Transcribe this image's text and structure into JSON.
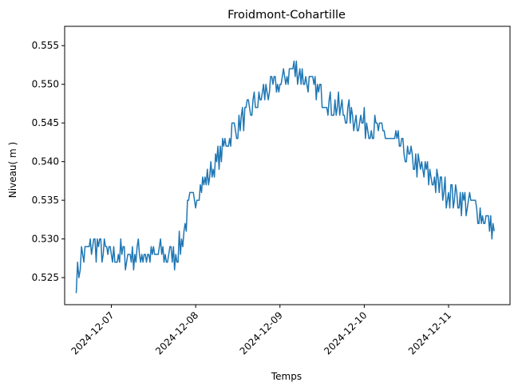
{
  "chart_data": {
    "type": "line",
    "title": "Froidmont-Cohartille",
    "xlabel": "Temps",
    "ylabel": "Niveau( m )",
    "ylim": [
      0.5215,
      0.5575
    ],
    "xlim": [
      "2024-12-06T10:42",
      "2024-12-11T17:30"
    ],
    "grid": false,
    "x_ticks": [
      "2024-12-07",
      "2024-12-08",
      "2024-12-09",
      "2024-12-10",
      "2024-12-11"
    ],
    "y_ticks": [
      "0.525",
      "0.530",
      "0.535",
      "0.540",
      "0.545",
      "0.550",
      "0.555"
    ],
    "y_tick_values": [
      0.525,
      0.53,
      0.535,
      0.54,
      0.545,
      0.55,
      0.555
    ],
    "series": [
      {
        "color": "#1f77b4",
        "x": [
          "2024-12-06T14:00",
          "2024-12-06T14:45",
          "2024-12-06T15:30",
          "2024-12-06T16:30",
          "2024-12-06T18:00",
          "2024-12-06T20:00",
          "2024-12-06T22:00",
          "2024-12-07T00:00",
          "2024-12-07T02:00",
          "2024-12-07T04:00",
          "2024-12-07T06:00",
          "2024-12-07T08:00",
          "2024-12-07T10:00",
          "2024-12-07T12:00",
          "2024-12-07T14:00",
          "2024-12-07T16:00",
          "2024-12-07T18:00",
          "2024-12-07T19:00",
          "2024-12-07T20:00",
          "2024-12-07T21:00",
          "2024-12-07T22:00",
          "2024-12-08T00:00",
          "2024-12-08T02:00",
          "2024-12-08T04:00",
          "2024-12-08T06:00",
          "2024-12-08T08:00",
          "2024-12-08T10:00",
          "2024-12-08T12:00",
          "2024-12-08T14:00",
          "2024-12-08T16:00",
          "2024-12-08T18:00",
          "2024-12-08T20:00",
          "2024-12-08T22:00",
          "2024-12-09T00:00",
          "2024-12-09T02:00",
          "2024-12-09T04:00",
          "2024-12-09T06:00",
          "2024-12-09T08:00",
          "2024-12-09T12:00",
          "2024-12-09T16:00",
          "2024-12-09T20:00",
          "2024-12-10T00:00",
          "2024-12-10T04:00",
          "2024-12-10T08:00",
          "2024-12-10T12:00",
          "2024-12-10T16:00",
          "2024-12-10T20:00",
          "2024-12-11T00:00",
          "2024-12-11T04:00",
          "2024-12-11T08:00",
          "2024-12-11T12:00",
          "2024-12-11T13:00"
        ],
        "values": [
          0.525,
          0.526,
          0.528,
          0.528,
          0.529,
          0.529,
          0.528,
          0.528,
          0.528,
          0.528,
          0.528,
          0.528,
          0.528,
          0.528,
          0.528,
          0.528,
          0.528,
          0.5285,
          0.53,
          0.532,
          0.534,
          0.536,
          0.537,
          0.5385,
          0.54,
          0.542,
          0.5435,
          0.5445,
          0.5455,
          0.547,
          0.548,
          0.549,
          0.5495,
          0.55,
          0.551,
          0.552,
          0.5515,
          0.5505,
          0.5485,
          0.547,
          0.546,
          0.545,
          0.544,
          0.5425,
          0.541,
          0.539,
          0.5375,
          0.536,
          0.535,
          0.534,
          0.532,
          0.531
        ]
      }
    ]
  }
}
